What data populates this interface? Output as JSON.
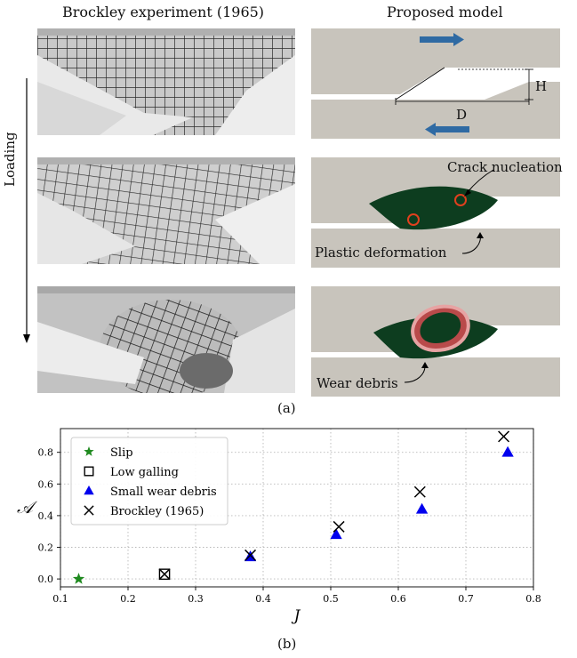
{
  "figure": {
    "left_header": "Brockley experiment (1965)",
    "right_header": "Proposed model",
    "loading_label": "Loading",
    "label_H": "H",
    "label_D": "D",
    "crack_label": "Crack nucleation",
    "plastic_label": "Plastic deformation",
    "debris_label": "Wear debris",
    "panel_a": "(a)",
    "panel_b": "(b)"
  },
  "colors": {
    "block": "#c8c4bc",
    "plastic": "#0d3d1f",
    "arrow": "#2f6aa3",
    "circle": "#e0401e"
  },
  "chart_data": {
    "type": "scatter",
    "xlabel": "J",
    "ylabel": "𝒜",
    "xlim": [
      0.1,
      0.8
    ],
    "ylim": [
      -0.05,
      0.95
    ],
    "xticks": [
      0.1,
      0.2,
      0.3,
      0.4,
      0.5,
      0.6,
      0.7,
      0.8
    ],
    "yticks": [
      0.0,
      0.2,
      0.4,
      0.6,
      0.8
    ],
    "grid": true,
    "legend_position": "top-left",
    "series": [
      {
        "name": "Slip",
        "marker": "star",
        "color": "#1f8a1f",
        "x": [
          0.127
        ],
        "y": [
          0.0
        ]
      },
      {
        "name": "Low galling",
        "marker": "square",
        "color": "#000000",
        "x": [
          0.254
        ],
        "y": [
          0.03
        ]
      },
      {
        "name": "Small wear debris",
        "marker": "triangle",
        "color": "#0000ee",
        "x": [
          0.381,
          0.508,
          0.635,
          0.762
        ],
        "y": [
          0.14,
          0.28,
          0.44,
          0.8
        ]
      },
      {
        "name": "Brockley (1965)",
        "marker": "x",
        "color": "#000000",
        "x": [
          0.254,
          0.381,
          0.512,
          0.632,
          0.756
        ],
        "y": [
          0.03,
          0.15,
          0.33,
          0.55,
          0.9
        ]
      }
    ]
  }
}
